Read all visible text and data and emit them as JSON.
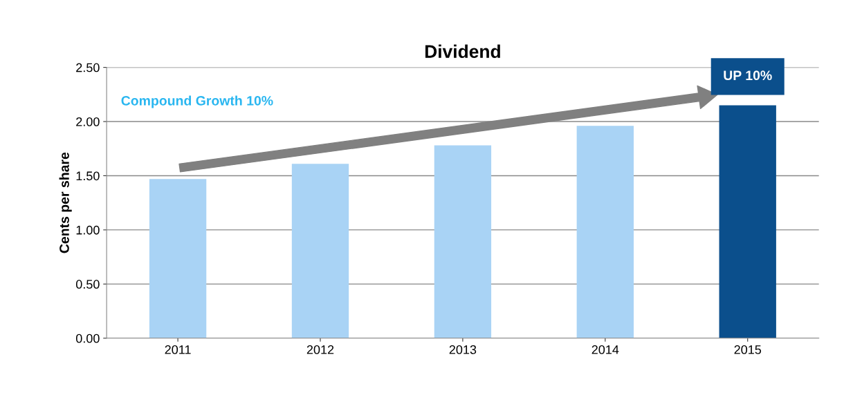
{
  "chart_data": {
    "type": "bar",
    "title": "Dividend",
    "ylabel": "Cents per share",
    "categories": [
      "2011",
      "2012",
      "2013",
      "2014",
      "2015"
    ],
    "values": [
      1.47,
      1.61,
      1.78,
      1.96,
      2.15
    ],
    "colors": [
      "#a9d3f5",
      "#a9d3f5",
      "#a9d3f5",
      "#a9d3f5",
      "#0b4f8c"
    ],
    "ylim": [
      0,
      2.5
    ],
    "yticks": [
      {
        "value": 0,
        "label": "0.00"
      },
      {
        "value": 0.5,
        "label": "0.50"
      },
      {
        "value": 1,
        "label": "1.00"
      },
      {
        "value": 1.5,
        "label": "1.50"
      },
      {
        "value": 2,
        "label": "2.00"
      },
      {
        "value": 2.5,
        "label": "2.50"
      }
    ],
    "grid": "y",
    "legend": false,
    "annotations": [
      "Compound Growth 10%",
      {
        "text": "UP 10%",
        "x": "2015",
        "y": 2.15
      }
    ]
  }
}
